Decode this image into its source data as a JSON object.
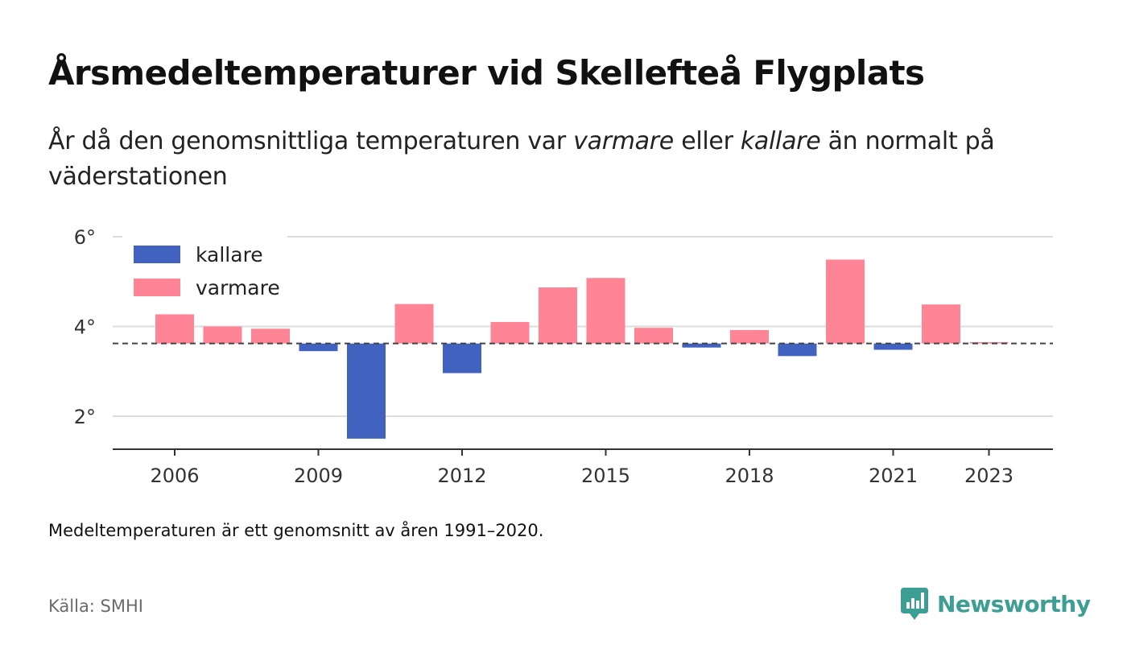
{
  "header": {
    "title": "Årsmedeltemperaturer vid Skellefteå Flygplats",
    "subtitle_part1": "År då den genomsnittliga temperaturen var ",
    "subtitle_warm": "varmare",
    "subtitle_part2": " eller ",
    "subtitle_cold": "kallare",
    "subtitle_part3": " än normalt på väderstationen"
  },
  "footer": {
    "note": "Medeltemperaturen är ett genomsnitt av åren 1991–2020.",
    "source": "Källa: SMHI",
    "brand": "Newsworthy"
  },
  "colors": {
    "warm": "#ff8596",
    "cold": "#4262c0",
    "brand": "#3d9e94"
  },
  "chart_data": {
    "type": "bar",
    "baseline": 3.62,
    "ylim": [
      1.25,
      6.0
    ],
    "yticks": [
      2,
      4,
      6
    ],
    "ytick_labels": [
      "2°",
      "4°",
      "6°"
    ],
    "xticks": [
      2006,
      2009,
      2012,
      2015,
      2018,
      2021,
      2023
    ],
    "grid": true,
    "legend_placement": "top-left",
    "legend": [
      {
        "label": "kallare",
        "color": "#4262c0"
      },
      {
        "label": "varmare",
        "color": "#ff8596"
      }
    ],
    "categories": [
      2006,
      2007,
      2008,
      2009,
      2010,
      2011,
      2012,
      2013,
      2014,
      2015,
      2016,
      2017,
      2018,
      2019,
      2020,
      2021,
      2022,
      2023
    ],
    "values": [
      4.27,
      4.0,
      3.95,
      3.45,
      1.5,
      4.5,
      2.96,
      4.1,
      4.87,
      5.08,
      3.97,
      3.53,
      3.92,
      3.34,
      5.49,
      3.48,
      4.49,
      3.65
    ]
  }
}
